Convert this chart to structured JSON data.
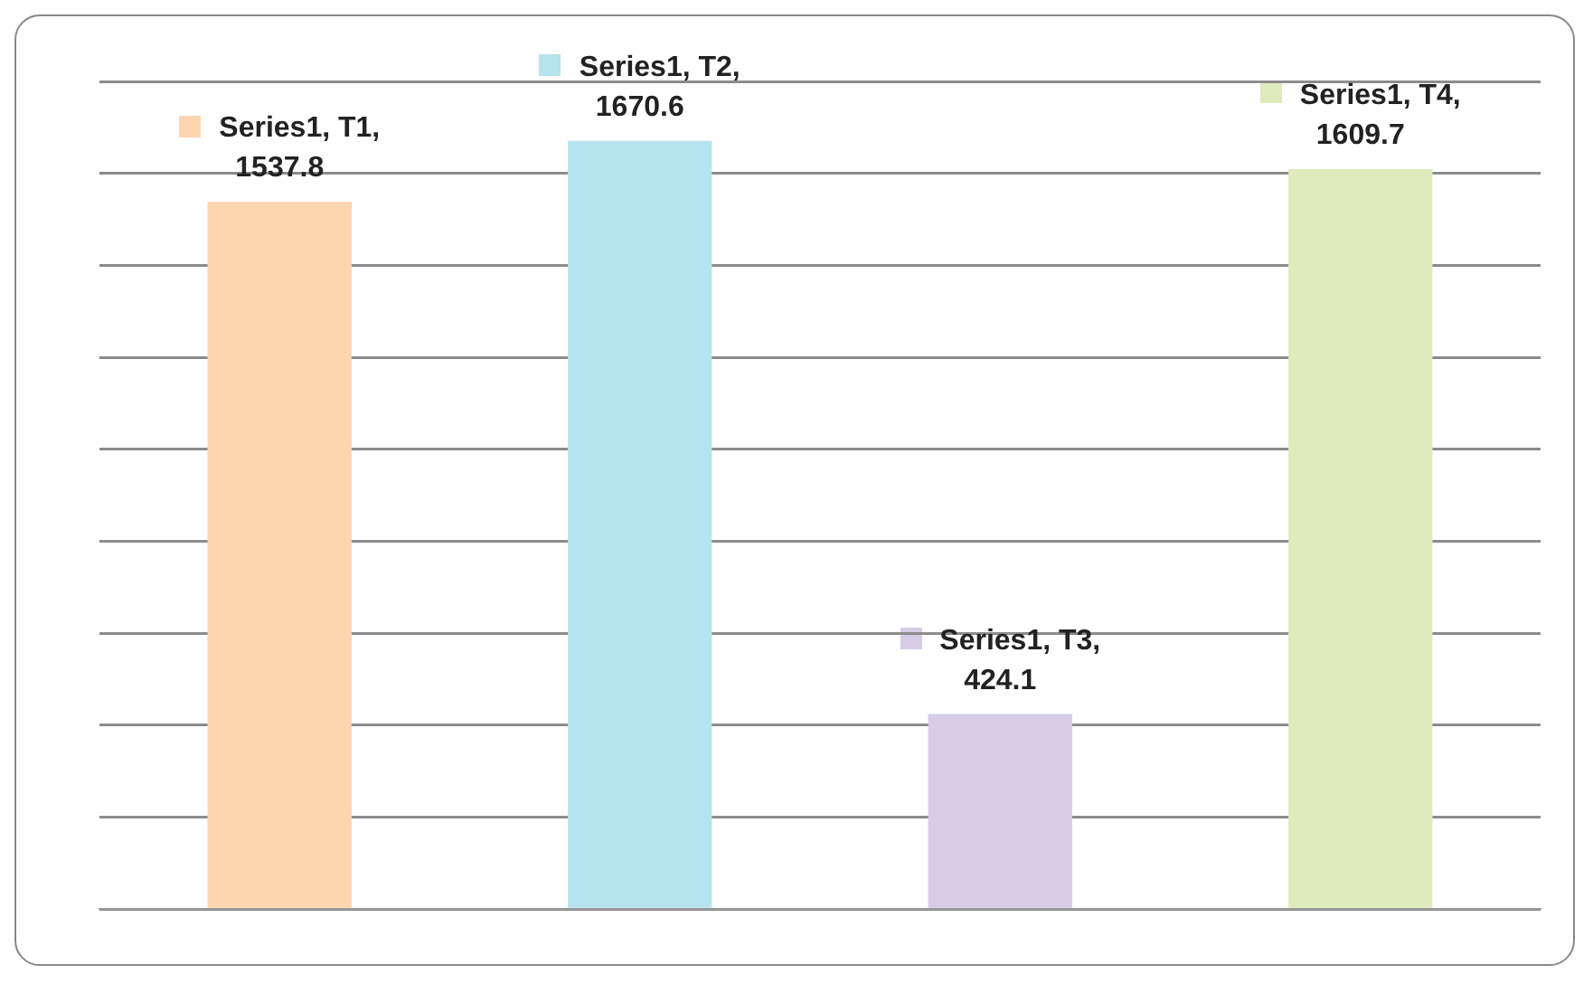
{
  "chart_data": {
    "type": "bar",
    "categories": [
      null,
      null,
      null,
      null
    ],
    "values": [
      1537.8,
      1670.6,
      424.1,
      1609.7
    ],
    "colors": [
      "#fdd5ae",
      "#b5e3ee",
      "#d6cce6",
      "#e0ebbd"
    ],
    "value_labels": [
      "Series1, T1, 1537.8",
      "Series1, T2, 1670.6",
      "Series1, T3, 424.1",
      "Series1, T4, 1609.7"
    ],
    "ylim": [
      0,
      1800
    ],
    "yticks": [
      {
        "value": 0,
        "label": null
      },
      {
        "value": 200,
        "label": null
      },
      {
        "value": 400,
        "label": null
      },
      {
        "value": 600,
        "label": null
      },
      {
        "value": 800,
        "label": null
      },
      {
        "value": 1000,
        "label": null
      },
      {
        "value": 1200,
        "label": null
      },
      {
        "value": 1400,
        "label": null
      },
      {
        "value": 1600,
        "label": null
      },
      {
        "value": 1800,
        "label": null
      }
    ],
    "grid": "y",
    "legend": false
  }
}
